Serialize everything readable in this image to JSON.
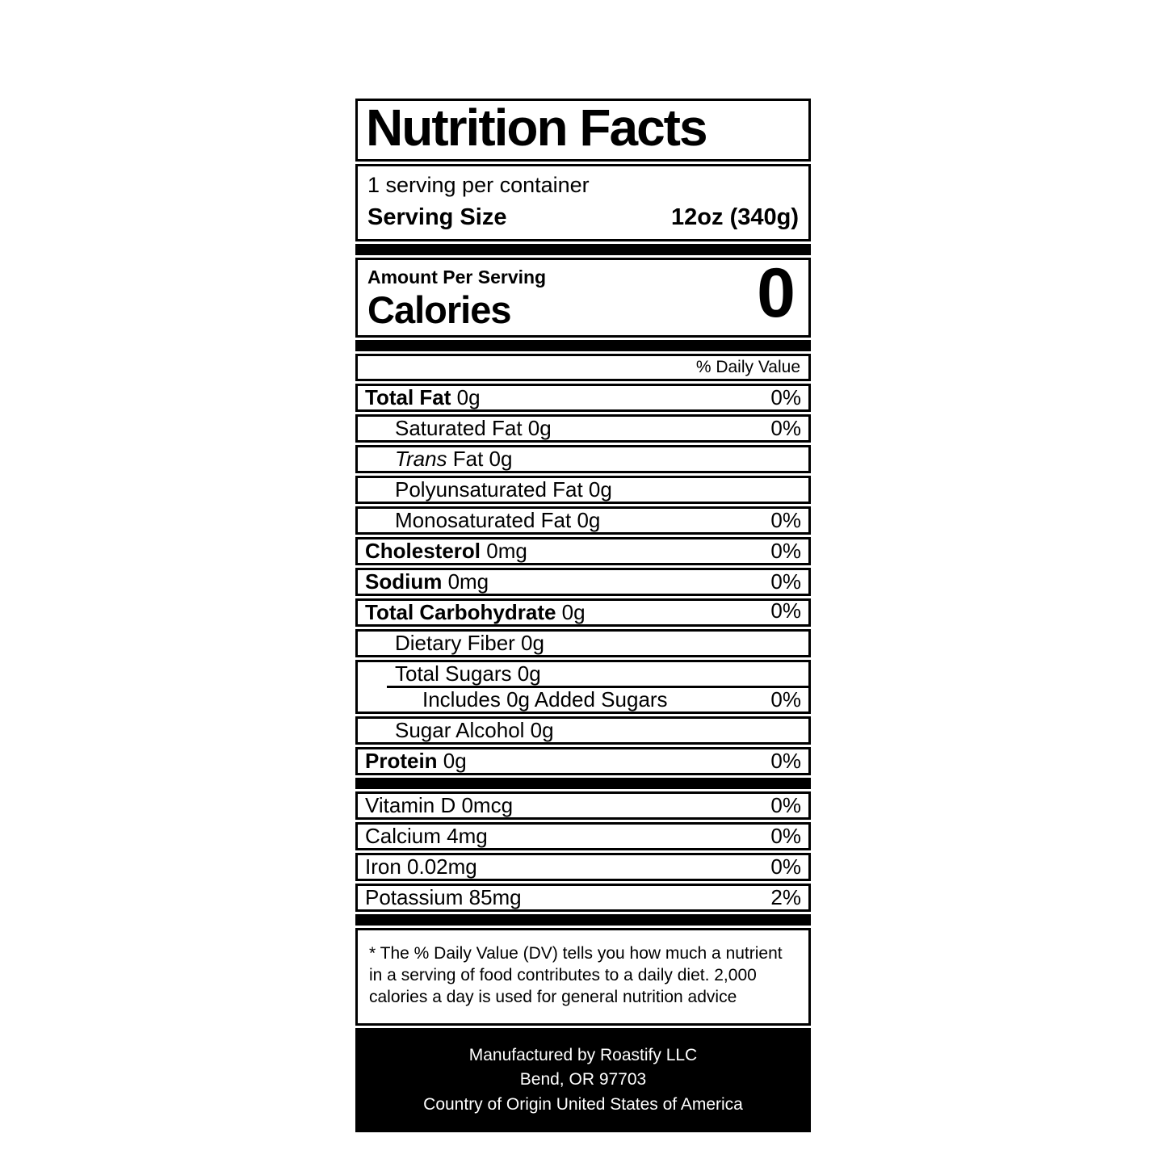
{
  "header": {
    "title": "Nutrition Facts",
    "servings": "1 serving per container",
    "serving_size_label": "Serving Size",
    "serving_size_value": "12oz (340g)"
  },
  "calories": {
    "amount_per_serving": "Amount Per Serving",
    "label": "Calories",
    "value": "0"
  },
  "daily_value_header": "% Daily Value",
  "nutrient_boxes": [
    {
      "rows": [
        {
          "parts": [
            {
              "t": "Total Fat",
              "b": true
            },
            {
              "t": " 0g"
            }
          ],
          "percent": "0%",
          "indent": 0
        }
      ]
    },
    {
      "rows": [
        {
          "parts": [
            {
              "t": "Saturated Fat 0g"
            }
          ],
          "percent": "0%",
          "indent": 1
        }
      ]
    },
    {
      "rows": [
        {
          "parts": [
            {
              "t": "Trans",
              "i": true
            },
            {
              "t": " Fat 0g"
            }
          ],
          "percent": "",
          "indent": 1
        }
      ]
    },
    {
      "rows": [
        {
          "parts": [
            {
              "t": "Polyunsaturated Fat 0g"
            }
          ],
          "percent": "",
          "indent": 1
        }
      ]
    },
    {
      "rows": [
        {
          "parts": [
            {
              "t": "Monosaturated Fat 0g"
            }
          ],
          "percent": "0%",
          "indent": 1
        }
      ]
    },
    {
      "rows": [
        {
          "parts": [
            {
              "t": "Cholesterol",
              "b": true
            },
            {
              "t": " 0mg"
            }
          ],
          "percent": "0%",
          "indent": 0
        }
      ]
    },
    {
      "rows": [
        {
          "parts": [
            {
              "t": "Sodium",
              "b": true
            },
            {
              "t": " 0mg"
            }
          ],
          "percent": "0%",
          "indent": 0
        }
      ]
    },
    {
      "rows": [
        {
          "parts": [
            {
              "t": "Total Carbohydrate",
              "b": true
            },
            {
              "t": " 0g"
            }
          ],
          "percent": "0%",
          "indent": 0,
          "percent_raised": true
        }
      ]
    },
    {
      "rows": [
        {
          "parts": [
            {
              "t": "Dietary Fiber 0g"
            }
          ],
          "percent": "",
          "indent": 1
        }
      ]
    },
    {
      "rows": [
        {
          "parts": [
            {
              "t": "Total Sugars 0g"
            }
          ],
          "percent": "",
          "indent": 1
        },
        {
          "parts": [
            {
              "t": "Includes 0g Added Sugars"
            }
          ],
          "percent": "0%",
          "indent": 2
        }
      ]
    },
    {
      "rows": [
        {
          "parts": [
            {
              "t": "Sugar Alcohol 0g"
            }
          ],
          "percent": "",
          "indent": 1
        }
      ]
    },
    {
      "rows": [
        {
          "parts": [
            {
              "t": "Protein",
              "b": true
            },
            {
              "t": " 0g"
            }
          ],
          "percent": "0%",
          "indent": 0
        }
      ]
    }
  ],
  "vitamin_rows": [
    {
      "text": "Vitamin D 0mcg",
      "percent": "0%"
    },
    {
      "text": "Calcium 4mg",
      "percent": "0%"
    },
    {
      "text": "Iron 0.02mg",
      "percent": "0%"
    },
    {
      "text": "Potassium 85mg",
      "percent": "2%"
    }
  ],
  "footnote": "* The % Daily Value (DV) tells you how much a nutrient in a serving of food contributes to a daily diet. 2,000 calories a day is used for general nutrition advice",
  "footer_lines": [
    "Manufactured by Roastify LLC",
    "Bend, OR 97703",
    "Country of Origin United States of America"
  ],
  "colors": {
    "ink": "#000000",
    "paper": "#ffffff"
  }
}
